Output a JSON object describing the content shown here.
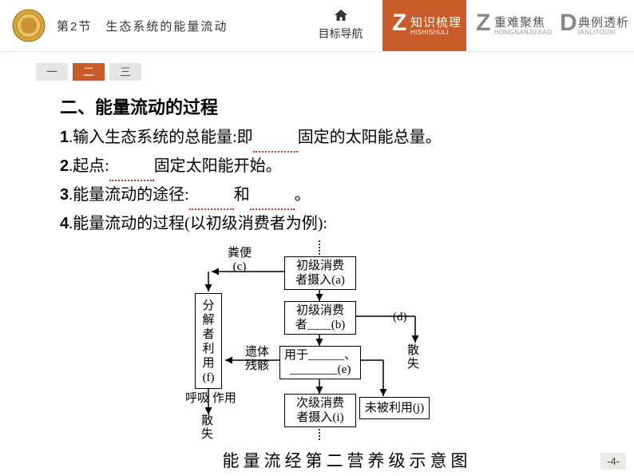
{
  "header": {
    "chapter": "第2节　生态系统的能量流动",
    "nav_home": "目标导航",
    "tabs": [
      {
        "letter": "Z",
        "main": "知识梳理",
        "sub": "HISHISHULI",
        "active": true
      },
      {
        "letter": "Z",
        "main": "重难聚焦",
        "sub": "HONGNANJUJIAO",
        "active": false
      },
      {
        "letter": "D",
        "main": "典例透析",
        "sub": "IANLITOUXI",
        "active": false
      }
    ]
  },
  "subtabs": {
    "items": [
      "一",
      "二",
      "三"
    ],
    "active_index": 1
  },
  "body": {
    "section_title": "二、能量流动的过程",
    "items": [
      {
        "no": "1",
        "pre": ".输入生态系统的总能量:即",
        "blank_w": 56,
        "post": "固定的太阳能总量。"
      },
      {
        "no": "2",
        "pre": ".起点:",
        "blank_w": 56,
        "post": "固定太阳能开始。"
      },
      {
        "no": "3",
        "pre": ".能量流动的途径:",
        "blank_w": 56,
        "mid": "和",
        "blank2_w": 56,
        "post": "。"
      },
      {
        "no": "4",
        "pre": ".能量流动的过程(以初级消费者为例):",
        "blank_w": 0,
        "post": ""
      }
    ]
  },
  "diagram": {
    "colors": {
      "line": "#000000",
      "text": "#000000",
      "blank": "#c0392b"
    },
    "box_a": "初级消费\n者摄入(a)",
    "box_b": "初级消费\n者____(b)",
    "box_e": "用于______、\n________(e)",
    "box_f": "分\n解\n者\n利\n用\n(f)",
    "box_i": "次级消费\n者摄入(i)",
    "box_j": "未被利用(j)",
    "label_c": "粪便\n(c)",
    "label_d": "(d)",
    "label_residue": "遗体\n残骸",
    "label_breath": "呼吸  作用",
    "label_loss1": "散\n失",
    "label_loss2": "散\n失",
    "caption": "能量流经第二营养级示意图"
  },
  "page_number": "-4-"
}
